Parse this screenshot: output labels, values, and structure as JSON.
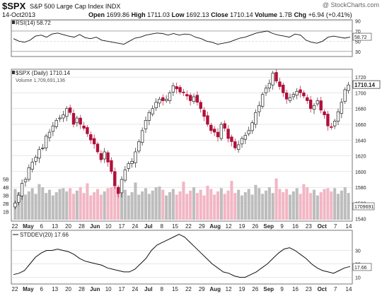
{
  "header": {
    "symbol": "$SPX",
    "description": "S&P 500 Large Cap Index  INDX",
    "watermark": "@ StockCharts.com",
    "date": "14-Oct2013",
    "open_label": "Open",
    "open": "1699.86",
    "high_label": "High",
    "high": "1711.03",
    "low_label": "Low",
    "low": "1692.13",
    "close_label": "Close",
    "close": "1710.14",
    "volume_label": "Volume",
    "volume": "1.7B",
    "chg_label": "Chg",
    "chg": "+6.94 (+0.41%)"
  },
  "colors": {
    "up": "#222222",
    "down": "#b0103a",
    "vol_up": "#bdbdbd",
    "vol_down": "#f2b6c4",
    "grid": "#cfcfcf"
  },
  "chart_data": [
    {
      "type": "line",
      "legend": "RSI(14) 58.72",
      "last_label": "58.72",
      "ticks": [
        30,
        50,
        70,
        90
      ],
      "ylim": [
        20,
        92
      ],
      "values": [
        55,
        50,
        48,
        52,
        60,
        62,
        58,
        64,
        66,
        63,
        60,
        58,
        63,
        57,
        55,
        58,
        52,
        50,
        48,
        46,
        44,
        50,
        56,
        58,
        62,
        64,
        66,
        65,
        62,
        65,
        62,
        64,
        63,
        58,
        55,
        50,
        48,
        44,
        46,
        48,
        52,
        56,
        58,
        62,
        66,
        68,
        70,
        65,
        62,
        60,
        58,
        64,
        62,
        52,
        48,
        46,
        50,
        58,
        60,
        58,
        56,
        58
      ]
    },
    {
      "type": "candlestick",
      "legend": "$SPX (Daily) 1710.14",
      "volume_legend": "Volume 1,709,691,136",
      "last_label": "1710.14",
      "volume_last_label": "1709691",
      "ylim": [
        1537,
        1730
      ],
      "price_ticks": [
        1540,
        1560,
        1580,
        1600,
        1620,
        1640,
        1660,
        1680,
        1700,
        1720
      ],
      "volume_ticks": [
        "1B",
        "2B",
        "3B",
        "4B",
        "5B"
      ],
      "volume_max": 6.2,
      "closes": [
        1560,
        1570,
        1585,
        1590,
        1605,
        1612,
        1618,
        1628,
        1630,
        1645,
        1650,
        1658,
        1665,
        1668,
        1672,
        1680,
        1675,
        1660,
        1668,
        1660,
        1655,
        1648,
        1640,
        1635,
        1625,
        1615,
        1625,
        1612,
        1600,
        1582,
        1572,
        1590,
        1602,
        1610,
        1613,
        1625,
        1638,
        1652,
        1665,
        1675,
        1680,
        1688,
        1692,
        1690,
        1692,
        1700,
        1709,
        1705,
        1701,
        1700,
        1696,
        1690,
        1695,
        1688,
        1680,
        1670,
        1660,
        1652,
        1650,
        1644,
        1660,
        1655,
        1642,
        1638,
        1630,
        1634,
        1642,
        1646,
        1652,
        1662,
        1675,
        1684,
        1698,
        1706,
        1712,
        1725,
        1715,
        1708,
        1700,
        1692,
        1694,
        1698,
        1702,
        1700,
        1696,
        1690,
        1680,
        1684,
        1690,
        1678,
        1672,
        1658,
        1656,
        1664,
        1676,
        1688,
        1704,
        1710
      ]
    },
    {
      "type": "line",
      "legend": "STDDEV(20) 17.66",
      "last_label": "17.66",
      "ticks": [
        10,
        20,
        30
      ],
      "ylim": [
        5,
        45
      ],
      "values": [
        12,
        13,
        15,
        20,
        25,
        28,
        30,
        30,
        31,
        30,
        29,
        27,
        24,
        22,
        21,
        20,
        19,
        17,
        16,
        15,
        14,
        14,
        16,
        20,
        24,
        30,
        34,
        36,
        38,
        40,
        42,
        40,
        36,
        32,
        28,
        24,
        20,
        17,
        14,
        13,
        11,
        10,
        10,
        12,
        14,
        17,
        20,
        24,
        28,
        31,
        32,
        30,
        27,
        24,
        20,
        17,
        15,
        14,
        13,
        15,
        17,
        18
      ]
    }
  ],
  "x_axis": {
    "labels": [
      "22",
      "May",
      "6",
      "13",
      "20",
      "28",
      "Jun",
      "10",
      "17",
      "24",
      "Jul",
      "8",
      "15",
      "22",
      "29",
      "Aug",
      "12",
      "19",
      "26",
      "Sep",
      "9",
      "16",
      "23",
      "Oct",
      "7",
      "14"
    ]
  }
}
